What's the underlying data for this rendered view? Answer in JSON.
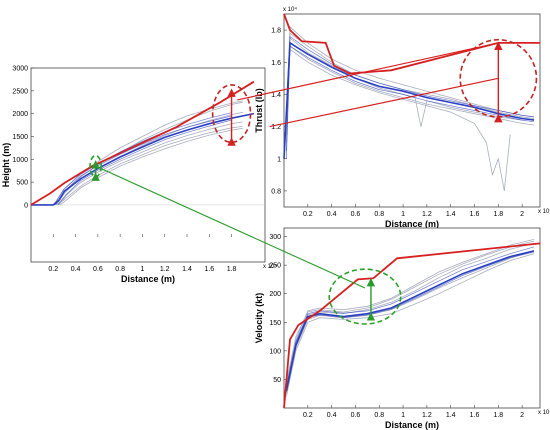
{
  "chart_data": [
    {
      "id": "height",
      "type": "line",
      "xlabel": "Distance  (m)",
      "ylabel": "Height (m)",
      "x_exponent": "x 10⁴",
      "xlim": [
        0,
        2.1
      ],
      "ylim": [
        -1250,
        3000
      ],
      "xticks": [
        0.2,
        0.4,
        0.6,
        0.8,
        1,
        1.2,
        1.4,
        1.6,
        1.8
      ],
      "xtick_labels": [
        "0.2",
        "0.4",
        "0.6",
        "0.8",
        "1",
        "1.2",
        "1.4",
        "1.6",
        "1.8"
      ],
      "yticks": [
        0,
        500,
        1000,
        1500,
        2000,
        2500,
        3000
      ],
      "ytick_labels": [
        "0",
        "500",
        "1000",
        "1500",
        "2000",
        "2500",
        "3000"
      ],
      "red_line": {
        "x": [
          0,
          0.17,
          0.3,
          0.55,
          0.9,
          1.3,
          1.7,
          2.0
        ],
        "y": [
          0,
          250,
          480,
          850,
          1250,
          1700,
          2250,
          2700
        ]
      },
      "blue_mean": {
        "x": [
          0,
          0.2,
          0.25,
          0.3,
          0.45,
          0.6,
          0.8,
          1.0,
          1.2,
          1.4,
          1.6,
          1.8,
          2.0
        ],
        "y": [
          0,
          0,
          100,
          300,
          580,
          800,
          1050,
          1270,
          1480,
          1640,
          1780,
          1900,
          2000
        ]
      },
      "gray_curves": [
        {
          "x": [
            0.23,
            0.3,
            0.45,
            0.6,
            0.8,
            1.0,
            1.2,
            1.4,
            1.6,
            1.8,
            1.9
          ],
          "y": [
            0,
            250,
            620,
            880,
            1150,
            1420,
            1650,
            1860,
            2050,
            2200,
            2250
          ]
        },
        {
          "x": [
            0.25,
            0.32,
            0.45,
            0.6,
            0.8,
            1.0,
            1.2,
            1.4,
            1.6,
            1.8,
            1.9
          ],
          "y": [
            0,
            220,
            500,
            720,
            960,
            1160,
            1360,
            1520,
            1660,
            1780,
            1820
          ]
        },
        {
          "x": [
            0.2,
            0.3,
            0.45,
            0.6,
            0.8,
            1.0,
            1.2,
            1.4,
            1.6,
            1.8,
            1.9
          ],
          "y": [
            0,
            350,
            700,
            950,
            1250,
            1500,
            1750,
            1950,
            2100,
            2230,
            2280
          ]
        },
        {
          "x": [
            0.24,
            0.33,
            0.45,
            0.6,
            0.8,
            1.0,
            1.2,
            1.4,
            1.6,
            1.8,
            1.9
          ],
          "y": [
            0,
            180,
            420,
            650,
            900,
            1100,
            1300,
            1450,
            1580,
            1690,
            1720
          ]
        },
        {
          "x": [
            0.22,
            0.3,
            0.45,
            0.6,
            0.8,
            1.0,
            1.2,
            1.4,
            1.6,
            1.8,
            1.9
          ],
          "y": [
            0,
            280,
            580,
            800,
            1060,
            1300,
            1520,
            1700,
            1850,
            1980,
            2030
          ]
        },
        {
          "x": [
            0.26,
            0.34,
            0.45,
            0.6,
            0.8,
            1.0,
            1.2,
            1.4,
            1.6,
            1.8,
            1.9
          ],
          "y": [
            0,
            150,
            380,
            600,
            850,
            1050,
            1230,
            1390,
            1530,
            1640,
            1680
          ]
        }
      ],
      "blue_curves": [
        {
          "x": [
            0.22,
            0.3,
            0.45,
            0.6,
            0.8,
            1.0,
            1.2,
            1.4,
            1.6,
            1.8
          ],
          "y": [
            0,
            300,
            640,
            860,
            1110,
            1330,
            1540,
            1700,
            1830,
            1950
          ]
        },
        {
          "x": [
            0.24,
            0.32,
            0.45,
            0.6,
            0.8,
            1.0,
            1.2,
            1.4,
            1.6,
            1.8
          ],
          "y": [
            0,
            240,
            540,
            760,
            1000,
            1220,
            1430,
            1590,
            1730,
            1860
          ]
        },
        {
          "x": [
            0.21,
            0.29,
            0.45,
            0.6,
            0.8,
            1.0,
            1.2,
            1.4,
            1.6,
            1.8
          ],
          "y": [
            0,
            330,
            680,
            900,
            1160,
            1390,
            1600,
            1760,
            1900,
            2020
          ]
        }
      ]
    },
    {
      "id": "thrust",
      "type": "line",
      "xlabel": "Distance  (m)",
      "ylabel": "Thrust (lb)",
      "x_exponent": "x 10⁴",
      "y_exponent": "x 10⁴",
      "xlim": [
        0,
        2.15
      ],
      "ylim": [
        0.7,
        1.9
      ],
      "xticks": [
        0.2,
        0.4,
        0.6,
        0.8,
        1,
        1.2,
        1.4,
        1.6,
        1.8,
        2
      ],
      "xtick_labels": [
        "0.2",
        "0.4",
        "0.6",
        "0.8",
        "1",
        "1.2",
        "1.4",
        "1.6",
        "1.8",
        "2"
      ],
      "yticks": [
        0.8,
        1,
        1.2,
        1.4,
        1.6,
        1.8
      ],
      "ytick_labels": [
        "0.8",
        "1",
        "1.2",
        "1.4",
        "1.6",
        "1.8"
      ],
      "red_line": {
        "x": [
          0,
          0.05,
          0.15,
          0.35,
          0.42,
          0.55,
          0.9,
          1.8,
          2.15
        ],
        "y": [
          1.9,
          1.8,
          1.73,
          1.72,
          1.58,
          1.53,
          1.55,
          1.72,
          1.72
        ]
      },
      "blue_mean": {
        "x": [
          0,
          0.05,
          0.2,
          0.4,
          0.6,
          0.8,
          1.0,
          1.2,
          1.4,
          1.6,
          1.8,
          2.0,
          2.1
        ],
        "y": [
          1.0,
          1.72,
          1.65,
          1.57,
          1.5,
          1.45,
          1.42,
          1.38,
          1.35,
          1.32,
          1.28,
          1.25,
          1.24
        ]
      },
      "gray_curves": [
        {
          "x": [
            0.02,
            0.05,
            0.2,
            0.4,
            0.6,
            0.8,
            1.0,
            1.2,
            1.4,
            1.6,
            1.8,
            2.0,
            2.1
          ],
          "y": [
            1.25,
            1.82,
            1.72,
            1.62,
            1.55,
            1.5,
            1.46,
            1.42,
            1.38,
            1.34,
            1.3,
            1.27,
            1.26
          ]
        },
        {
          "x": [
            0.02,
            0.05,
            0.2,
            0.4,
            0.6,
            0.8,
            1.0,
            1.2,
            1.4,
            1.6,
            1.8,
            2.0,
            2.1
          ],
          "y": [
            1.2,
            1.7,
            1.62,
            1.54,
            1.47,
            1.42,
            1.38,
            1.34,
            1.31,
            1.28,
            1.25,
            1.22,
            1.21
          ]
        },
        {
          "x": [
            0.02,
            0.05,
            0.2,
            0.4,
            0.6,
            0.8,
            1.0,
            1.2,
            1.4,
            1.6,
            1.8,
            2.0,
            2.1
          ],
          "y": [
            1.3,
            1.78,
            1.7,
            1.6,
            1.52,
            1.47,
            1.43,
            1.4,
            1.37,
            1.33,
            1.29,
            1.26,
            1.25
          ]
        },
        {
          "x": [
            0.02,
            0.05,
            0.2,
            0.4,
            0.6,
            0.8,
            1.0,
            1.2,
            1.4,
            1.6,
            1.7,
            1.75,
            1.8,
            1.85,
            1.9
          ],
          "y": [
            1.15,
            1.68,
            1.6,
            1.52,
            1.46,
            1.41,
            1.37,
            1.33,
            1.29,
            1.22,
            1.1,
            0.9,
            1.0,
            0.8,
            1.15
          ]
        },
        {
          "x": [
            0.02,
            0.05,
            0.2,
            0.4,
            0.6,
            0.8,
            1.0,
            1.1,
            1.15,
            1.2,
            1.4,
            1.6,
            1.8,
            2.0
          ],
          "y": [
            1.1,
            1.75,
            1.66,
            1.58,
            1.5,
            1.44,
            1.4,
            1.38,
            1.2,
            1.36,
            1.32,
            1.29,
            1.26,
            1.24
          ]
        }
      ],
      "blue_curves": [
        {
          "x": [
            0.02,
            0.05,
            0.2,
            0.4,
            0.6,
            0.8,
            1.0,
            1.2,
            1.4,
            1.6,
            1.8,
            2.0,
            2.1
          ],
          "y": [
            1.05,
            1.76,
            1.68,
            1.59,
            1.52,
            1.47,
            1.43,
            1.39,
            1.36,
            1.33,
            1.3,
            1.27,
            1.26
          ]
        },
        {
          "x": [
            0.02,
            0.05,
            0.2,
            0.4,
            0.6,
            0.8,
            1.0,
            1.2,
            1.4,
            1.6,
            1.8,
            2.0,
            2.1
          ],
          "y": [
            1.0,
            1.7,
            1.63,
            1.55,
            1.48,
            1.43,
            1.4,
            1.36,
            1.33,
            1.3,
            1.27,
            1.24,
            1.23
          ]
        }
      ]
    },
    {
      "id": "velocity",
      "type": "line",
      "xlabel": "Distance  (m)",
      "ylabel": "Velocity (kt)",
      "x_exponent": "x 10⁴",
      "xlim": [
        0,
        2.15
      ],
      "ylim": [
        0,
        315
      ],
      "xticks": [
        0.2,
        0.4,
        0.6,
        0.8,
        1,
        1.2,
        1.4,
        1.6,
        1.8,
        2
      ],
      "xtick_labels": [
        "0.2",
        "0.4",
        "0.6",
        "0.8",
        "1",
        "1.2",
        "1.4",
        "1.6",
        "1.8",
        "2"
      ],
      "yticks": [
        50,
        100,
        150,
        200,
        250,
        300
      ],
      "ytick_labels": [
        "50",
        "100",
        "150",
        "200",
        "250",
        "300"
      ],
      "red_line": {
        "x": [
          0,
          0.05,
          0.12,
          0.3,
          0.62,
          0.75,
          0.95,
          2.15
        ],
        "y": [
          0,
          120,
          145,
          170,
          225,
          227,
          262,
          288
        ]
      },
      "blue_mean": {
        "x": [
          0.02,
          0.1,
          0.2,
          0.3,
          0.5,
          0.7,
          0.9,
          1.1,
          1.3,
          1.5,
          1.7,
          1.9,
          2.1
        ],
        "y": [
          30,
          110,
          160,
          165,
          160,
          165,
          175,
          195,
          215,
          235,
          250,
          265,
          275
        ]
      },
      "gray_curves": [
        {
          "x": [
            0.02,
            0.1,
            0.2,
            0.3,
            0.5,
            0.7,
            0.9,
            1.1,
            1.3,
            1.5,
            1.7,
            1.9,
            2.1
          ],
          "y": [
            40,
            120,
            170,
            175,
            172,
            178,
            192,
            215,
            238,
            255,
            270,
            285,
            295
          ]
        },
        {
          "x": [
            0.02,
            0.1,
            0.2,
            0.3,
            0.5,
            0.7,
            0.9,
            1.1,
            1.3,
            1.5,
            1.7,
            1.9,
            2.1
          ],
          "y": [
            20,
            100,
            150,
            158,
            155,
            158,
            165,
            182,
            200,
            220,
            240,
            258,
            270
          ]
        },
        {
          "x": [
            0.02,
            0.1,
            0.2,
            0.3,
            0.5,
            0.7,
            0.9,
            1.1,
            1.3,
            1.5,
            1.7,
            1.9,
            2.1
          ],
          "y": [
            35,
            115,
            163,
            168,
            165,
            172,
            185,
            205,
            228,
            248,
            262,
            278,
            288
          ]
        },
        {
          "x": [
            0.02,
            0.1,
            0.2,
            0.3,
            0.5,
            0.7,
            0.9,
            1.1,
            1.3,
            1.5,
            1.7,
            1.9,
            2.1
          ],
          "y": [
            25,
            105,
            155,
            162,
            158,
            162,
            172,
            190,
            210,
            228,
            245,
            262,
            275
          ]
        },
        {
          "x": [
            0.02,
            0.1,
            0.2,
            0.3,
            0.5,
            0.7,
            0.9,
            1.1,
            1.3,
            1.5,
            1.7,
            1.9,
            2.1
          ],
          "y": [
            45,
            125,
            168,
            172,
            168,
            175,
            190,
            212,
            234,
            252,
            268,
            282,
            292
          ]
        }
      ],
      "blue_curves": [
        {
          "x": [
            0.02,
            0.1,
            0.2,
            0.3,
            0.5,
            0.7,
            0.9,
            1.1,
            1.3,
            1.5,
            1.7,
            1.9,
            2.1
          ],
          "y": [
            28,
            108,
            158,
            163,
            158,
            163,
            173,
            192,
            212,
            232,
            248,
            263,
            273
          ]
        },
        {
          "x": [
            0.02,
            0.1,
            0.2,
            0.3,
            0.5,
            0.7,
            0.9,
            1.1,
            1.3,
            1.5,
            1.7,
            1.9,
            2.1
          ],
          "y": [
            38,
            116,
            165,
            170,
            166,
            170,
            182,
            202,
            222,
            242,
            256,
            270,
            282
          ]
        }
      ]
    }
  ],
  "colors": {
    "red": "#d62020",
    "blue": "#2a3fc0",
    "gray": "#a9aebf",
    "green": "#2a9a2a",
    "red_dashed": "#c02424",
    "green_dashed": "#2aa02a"
  },
  "annotations": {
    "height_ellipse": {
      "panel": "height",
      "cx": 1.8,
      "cy": 2000,
      "rx": 0.17,
      "ry": 630,
      "color": "red"
    },
    "height_error": {
      "panel": "height",
      "x": 1.8,
      "y1": 1450,
      "y2": 2520,
      "color": "red"
    },
    "height_small_ellipse": {
      "panel": "height",
      "cx": 0.58,
      "cy": 850,
      "rx": 0.05,
      "ry": 230,
      "color": "green"
    },
    "height_small_error": {
      "panel": "height",
      "x": 0.58,
      "y1": 680,
      "y2": 950,
      "color": "green"
    },
    "thrust_ellipse": {
      "panel": "thrust",
      "cx": 1.8,
      "cy": 1.5,
      "rx": 0.32,
      "ry": 0.24,
      "color": "red"
    },
    "thrust_error": {
      "panel": "thrust",
      "x": 1.8,
      "y1": 1.27,
      "y2": 1.72,
      "color": "red"
    },
    "velocity_ellipse": {
      "panel": "velocity",
      "cx": 0.68,
      "cy": 195,
      "rx": 0.3,
      "ry": 48,
      "color": "green"
    },
    "velocity_error": {
      "panel": "velocity",
      "x": 0.73,
      "y1": 165,
      "y2": 225,
      "color": "green"
    },
    "link_red": {
      "from_panel": "thrust",
      "from": [
        1.8,
        1.5
      ],
      "to_panel": "thrust",
      "to": [
        -0.12,
        1.2
      ],
      "color": "red"
    },
    "link_green": {
      "from_panel": "height",
      "from": [
        0.58,
        850
      ],
      "to_panel": "velocity",
      "to": [
        0.68,
        210
      ],
      "color": "green"
    }
  }
}
